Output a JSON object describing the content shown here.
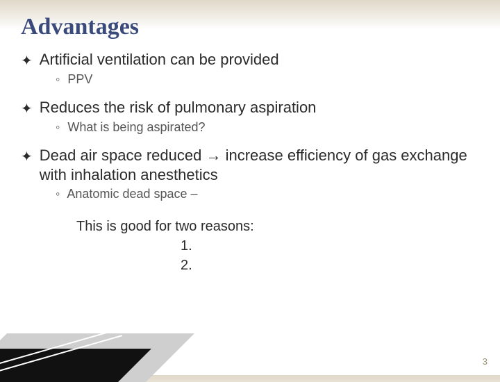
{
  "title": "Advantages",
  "items": [
    {
      "text": "Artificial ventilation can be provided",
      "sub": "PPV"
    },
    {
      "text": "Reduces the risk of pulmonary aspiration",
      "sub": "What is being aspirated?"
    },
    {
      "text": "Dead air space reduced → increase efficiency of gas exchange with inhalation anesthetics",
      "sub": "Anatomic dead space –"
    }
  ],
  "reasons": {
    "intro": "This is good for two reasons:",
    "line1": "1.",
    "line2": "2."
  },
  "pageNumber": "3",
  "colors": {
    "titleColor": "#3a4a7a",
    "bodyText": "#2a2a2a",
    "subText": "#555555",
    "bgTop": "#e0d8c8",
    "pageNumColor": "#9a8f70"
  },
  "bulletGlyph": "✦",
  "subBulletGlyph": "◦"
}
